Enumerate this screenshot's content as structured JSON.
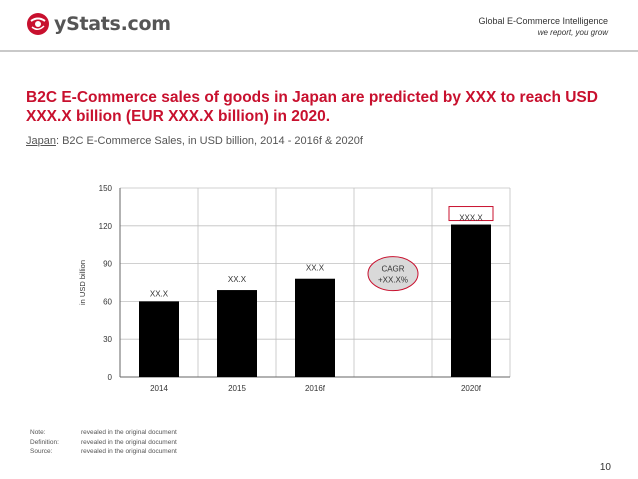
{
  "header": {
    "logo_text": "yStats.com",
    "tagline_line1": "Global E-Commerce Intelligence",
    "tagline_line2": "we report, you grow",
    "brand_color": "#c8102e"
  },
  "headline": "B2C E-Commerce sales of goods in Japan are predicted by XXX to reach USD XXX.X billion (EUR XXX.X billion) in 2020.",
  "subtitle": {
    "country": "Japan",
    "rest": ": B2C E-Commerce Sales, in USD billion, 2014 - 2016f & 2020f"
  },
  "chart_data": {
    "type": "bar",
    "categories": [
      "2014",
      "2015",
      "2016f",
      "",
      "2020f"
    ],
    "values": [
      60,
      69,
      78,
      null,
      121
    ],
    "data_labels": [
      "XX.X",
      "XX.X",
      "XX.X",
      "",
      "XXX.X"
    ],
    "ylabel": "in USD billion",
    "xlabel": "",
    "ylim": [
      0,
      150
    ],
    "yticks": [
      0,
      30,
      60,
      90,
      120,
      150
    ],
    "grid": true,
    "legend": "none",
    "bar_color": "#000000",
    "annotation": {
      "line1": "CAGR",
      "line2": "+XX.X%"
    }
  },
  "notes": [
    {
      "label": "Note:",
      "text": "revealed in the original document"
    },
    {
      "label": "Definition:",
      "text": "revealed in the original document"
    },
    {
      "label": "Source:",
      "text": "revealed in the original document"
    }
  ],
  "page_number": "10"
}
